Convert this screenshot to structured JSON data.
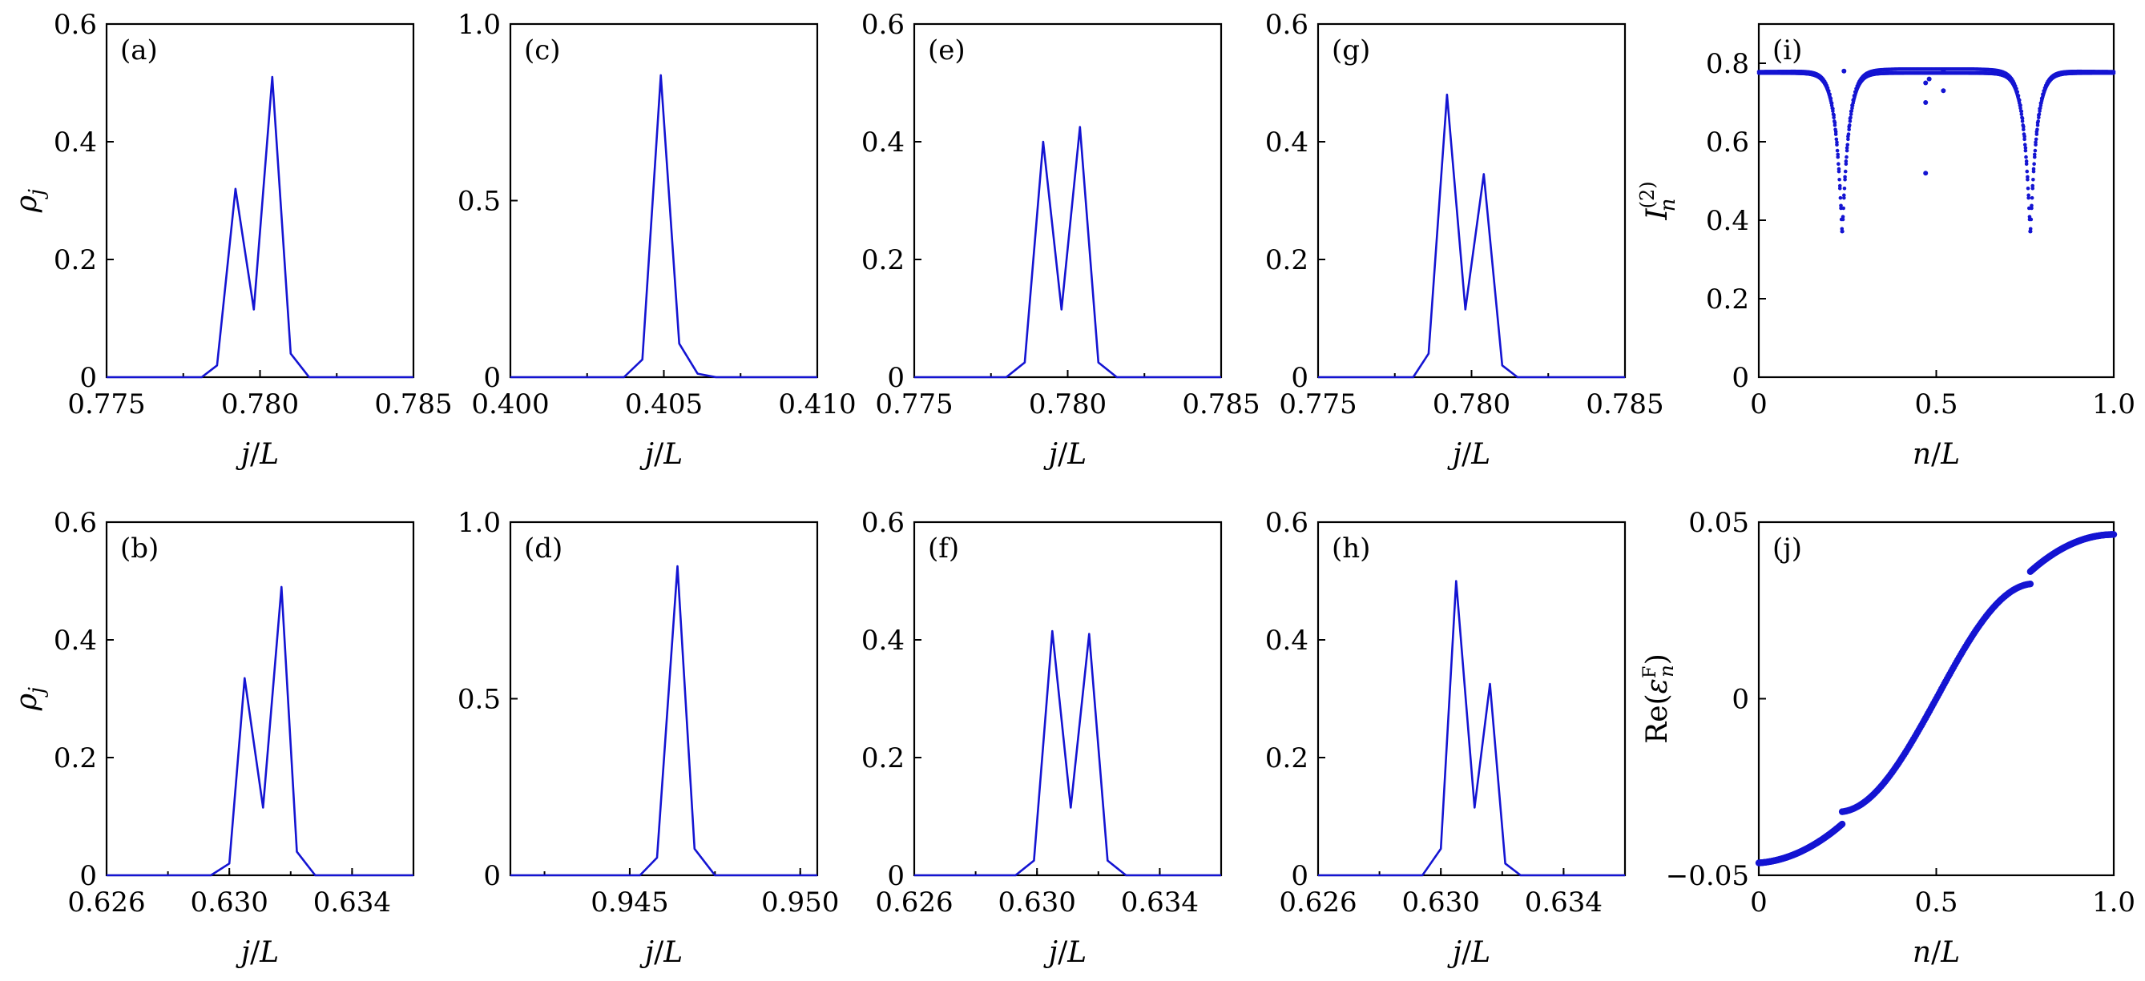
{
  "chart_data": [
    {
      "id": "a",
      "type": "line",
      "panel_label": "(a)",
      "xlabel": "j/L",
      "ylabel": "ρ_j",
      "xlim": [
        0.775,
        0.785
      ],
      "ylim": [
        0,
        0.6
      ],
      "xticks": [
        0.775,
        0.78,
        0.785
      ],
      "xtick_labels": [
        "0.775",
        "0.780",
        "0.785"
      ],
      "yticks": [
        0,
        0.2,
        0.4,
        0.6
      ],
      "ytick_labels": [
        "0",
        "0.2",
        "0.4",
        "0.6"
      ],
      "x": [
        0.775,
        0.7781,
        0.7786,
        0.7792,
        0.7798,
        0.7804,
        0.781,
        0.7816,
        0.785
      ],
      "y": [
        0,
        0,
        0.02,
        0.32,
        0.115,
        0.51,
        0.04,
        0,
        0
      ]
    },
    {
      "id": "b",
      "type": "line",
      "panel_label": "(b)",
      "xlabel": "j/L",
      "ylabel": "ρ_j",
      "xlim": [
        0.626,
        0.636
      ],
      "ylim": [
        0,
        0.6
      ],
      "xticks": [
        0.626,
        0.63,
        0.634
      ],
      "xtick_labels": [
        "0.626",
        "0.630",
        "0.634"
      ],
      "yticks": [
        0,
        0.2,
        0.4,
        0.6
      ],
      "ytick_labels": [
        "0",
        "0.2",
        "0.4",
        "0.6"
      ],
      "x": [
        0.626,
        0.6294,
        0.63,
        0.6305,
        0.6311,
        0.6317,
        0.6322,
        0.6328,
        0.636
      ],
      "y": [
        0,
        0,
        0.02,
        0.335,
        0.115,
        0.49,
        0.04,
        0,
        0
      ]
    },
    {
      "id": "c",
      "type": "line",
      "panel_label": "(c)",
      "xlabel": "j/L",
      "ylabel": "",
      "xlim": [
        0.4,
        0.41
      ],
      "ylim": [
        0,
        1.0
      ],
      "xticks": [
        0.4,
        0.405,
        0.41
      ],
      "xtick_labels": [
        "0.400",
        "0.405",
        "0.410"
      ],
      "yticks": [
        0,
        0.5,
        1.0
      ],
      "ytick_labels": [
        "0",
        "0.5",
        "1.0"
      ],
      "x": [
        0.4,
        0.4037,
        0.4043,
        0.4049,
        0.4055,
        0.4061,
        0.4067,
        0.41
      ],
      "y": [
        0,
        0,
        0.05,
        0.855,
        0.095,
        0.01,
        0,
        0
      ]
    },
    {
      "id": "d",
      "type": "line",
      "panel_label": "(d)",
      "xlabel": "j/L",
      "ylabel": "",
      "xlim": [
        0.9415,
        0.9505
      ],
      "ylim": [
        0,
        1.0
      ],
      "xticks": [
        0.945,
        0.95
      ],
      "xtick_labels": [
        "0.945",
        "0.950"
      ],
      "yticks": [
        0,
        0.5,
        1.0
      ],
      "ytick_labels": [
        "0",
        "0.5",
        "1.0"
      ],
      "x": [
        0.9415,
        0.9453,
        0.9458,
        0.9464,
        0.9469,
        0.9475,
        0.9505
      ],
      "y": [
        0,
        0,
        0.05,
        0.875,
        0.075,
        0,
        0
      ]
    },
    {
      "id": "e",
      "type": "line",
      "panel_label": "(e)",
      "xlabel": "j/L",
      "ylabel": "",
      "xlim": [
        0.775,
        0.785
      ],
      "ylim": [
        0,
        0.6
      ],
      "xticks": [
        0.775,
        0.78,
        0.785
      ],
      "xtick_labels": [
        "0.775",
        "0.780",
        "0.785"
      ],
      "yticks": [
        0,
        0.2,
        0.4,
        0.6
      ],
      "ytick_labels": [
        "0",
        "0.2",
        "0.4",
        "0.6"
      ],
      "x": [
        0.775,
        0.778,
        0.7786,
        0.7792,
        0.7798,
        0.7804,
        0.781,
        0.7816,
        0.785
      ],
      "y": [
        0,
        0,
        0.025,
        0.4,
        0.115,
        0.425,
        0.025,
        0,
        0
      ]
    },
    {
      "id": "f",
      "type": "line",
      "panel_label": "(f)",
      "xlabel": "j/L",
      "ylabel": "",
      "xlim": [
        0.626,
        0.636
      ],
      "ylim": [
        0,
        0.6
      ],
      "xticks": [
        0.626,
        0.63,
        0.634
      ],
      "xtick_labels": [
        "0.626",
        "0.630",
        "0.634"
      ],
      "yticks": [
        0,
        0.2,
        0.4,
        0.6
      ],
      "ytick_labels": [
        "0",
        "0.2",
        "0.4",
        "0.6"
      ],
      "x": [
        0.626,
        0.6293,
        0.6299,
        0.6305,
        0.6311,
        0.6317,
        0.6323,
        0.6329,
        0.636
      ],
      "y": [
        0,
        0,
        0.025,
        0.415,
        0.115,
        0.41,
        0.025,
        0,
        0
      ]
    },
    {
      "id": "g",
      "type": "line",
      "panel_label": "(g)",
      "xlabel": "j/L",
      "ylabel": "",
      "xlim": [
        0.775,
        0.785
      ],
      "ylim": [
        0,
        0.6
      ],
      "xticks": [
        0.775,
        0.78,
        0.785
      ],
      "xtick_labels": [
        "0.775",
        "0.780",
        "0.785"
      ],
      "yticks": [
        0,
        0.2,
        0.4,
        0.6
      ],
      "ytick_labels": [
        "0",
        "0.2",
        "0.4",
        "0.6"
      ],
      "x": [
        0.775,
        0.7781,
        0.7786,
        0.7792,
        0.7798,
        0.7804,
        0.781,
        0.7815,
        0.785
      ],
      "y": [
        0,
        0,
        0.04,
        0.48,
        0.115,
        0.345,
        0.02,
        0,
        0
      ]
    },
    {
      "id": "h",
      "type": "line",
      "panel_label": "(h)",
      "xlabel": "j/L",
      "ylabel": "",
      "xlim": [
        0.626,
        0.636
      ],
      "ylim": [
        0,
        0.6
      ],
      "xticks": [
        0.626,
        0.63,
        0.634
      ],
      "xtick_labels": [
        "0.626",
        "0.630",
        "0.634"
      ],
      "yticks": [
        0,
        0.2,
        0.4,
        0.6
      ],
      "ytick_labels": [
        "0",
        "0.2",
        "0.4",
        "0.6"
      ],
      "x": [
        0.626,
        0.6294,
        0.63,
        0.6305,
        0.6311,
        0.6316,
        0.6321,
        0.6326,
        0.636
      ],
      "y": [
        0,
        0,
        0.045,
        0.5,
        0.115,
        0.325,
        0.02,
        0,
        0
      ]
    },
    {
      "id": "i",
      "type": "scatter",
      "panel_label": "(i)",
      "xlabel": "n/L",
      "ylabel": "I_n^(2)",
      "xlim": [
        0,
        1.0
      ],
      "ylim": [
        0,
        0.9
      ],
      "xticks": [
        0,
        0.5,
        1.0
      ],
      "xtick_labels": [
        "0",
        "0.5",
        "1.0"
      ],
      "yticks": [
        0,
        0.2,
        0.4,
        0.6,
        0.8
      ],
      "ytick_labels": [
        "0",
        "0.2",
        "0.4",
        "0.6",
        "0.8"
      ],
      "description_points": "two dips to about 0.35 near n/L = 0.23 and 0.76; baseline near 0.77-0.78",
      "dips": [
        {
          "x": 0.235,
          "min": 0.355
        },
        {
          "x": 0.765,
          "min": 0.355
        }
      ],
      "baseline": 0.775,
      "outliers": [
        [
          0.24,
          0.78
        ],
        [
          0.47,
          0.75
        ],
        [
          0.47,
          0.7
        ],
        [
          0.47,
          0.52
        ],
        [
          0.48,
          0.76
        ],
        [
          0.52,
          0.78
        ],
        [
          0.52,
          0.73
        ]
      ]
    },
    {
      "id": "j",
      "type": "scatter",
      "panel_label": "(j)",
      "xlabel": "n/L",
      "ylabel": "Re(ε_n^F)",
      "xlim": [
        0,
        1.0
      ],
      "ylim": [
        -0.05,
        0.05
      ],
      "xticks": [
        0,
        0.5,
        1.0
      ],
      "xtick_labels": [
        "0",
        "0.5",
        "1.0"
      ],
      "yticks": [
        -0.05,
        0,
        0.05
      ],
      "ytick_labels": [
        "−0.05",
        "0",
        "0.05"
      ],
      "segments": [
        {
          "x": [
            0,
            0.235
          ],
          "y": [
            -0.0465,
            -0.0355
          ]
        },
        {
          "x": [
            0.235,
            0.765
          ],
          "y": [
            -0.032,
            0.0325
          ]
        },
        {
          "x": [
            0.765,
            1.0
          ],
          "y": [
            0.036,
            0.0465
          ]
        }
      ]
    }
  ]
}
